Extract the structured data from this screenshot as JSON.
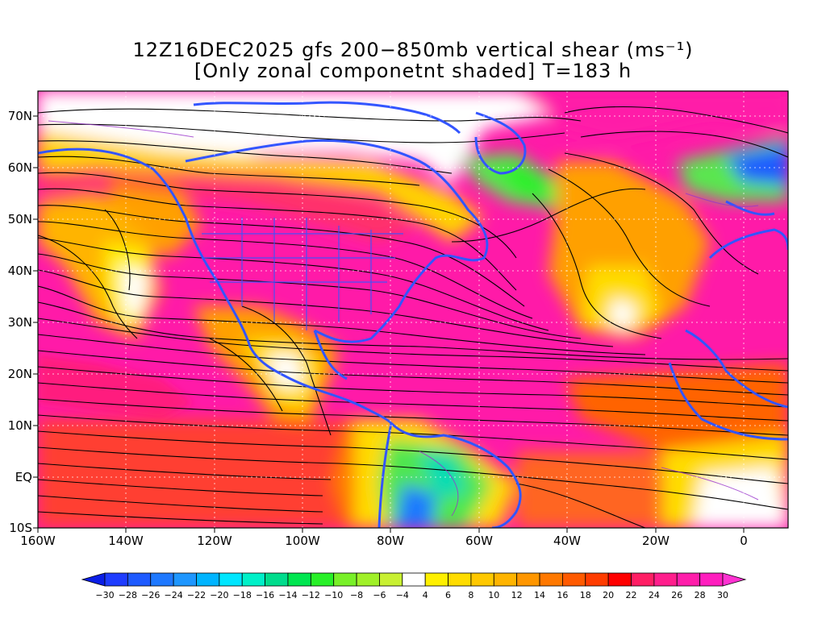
{
  "title": {
    "line1": "12Z16DEC2025 gfs 200−850mb vertical shear (ms⁻¹)",
    "line2": "[Only zonal componetnt shaded] T=183 h"
  },
  "map": {
    "lat_labels": [
      "70N",
      "60N",
      "50N",
      "40N",
      "30N",
      "20N",
      "10N",
      "EQ",
      "10S"
    ],
    "lon_labels": [
      "160W",
      "140W",
      "120W",
      "100W",
      "80W",
      "60W",
      "40W",
      "20W",
      "0"
    ],
    "lon_range": [
      -160,
      10
    ],
    "lat_range": [
      -10,
      75
    ],
    "colors": {
      "background_shear": "#ff1aa8",
      "strong": "#ff1493",
      "coastlines": "#3355ff",
      "streamlines": "#000000",
      "contours": "#9933cc"
    }
  },
  "colorbar": {
    "labels": [
      "−30",
      "−28",
      "−26",
      "−24",
      "−22",
      "−20",
      "−18",
      "−16",
      "−14",
      "−12",
      "−10",
      "−8",
      "−6",
      "−4",
      "4",
      "6",
      "8",
      "10",
      "12",
      "14",
      "16",
      "18",
      "20",
      "22",
      "24",
      "26",
      "28",
      "30"
    ],
    "colors": [
      "#0a1ee6",
      "#1e3cff",
      "#1e5aff",
      "#1e78ff",
      "#1e96ff",
      "#00b4ff",
      "#00e6ff",
      "#00f0c8",
      "#00dc8c",
      "#00e650",
      "#28f028",
      "#78f028",
      "#a0f028",
      "#c8f032",
      "#ffffff",
      "#fff000",
      "#ffdc00",
      "#ffc800",
      "#ffb400",
      "#ff9600",
      "#ff7800",
      "#ff5a00",
      "#ff3c00",
      "#ff0000",
      "#ff1e64",
      "#ff1e8c",
      "#ff1eaa",
      "#ff1ebe",
      "#ff32d2"
    ]
  }
}
